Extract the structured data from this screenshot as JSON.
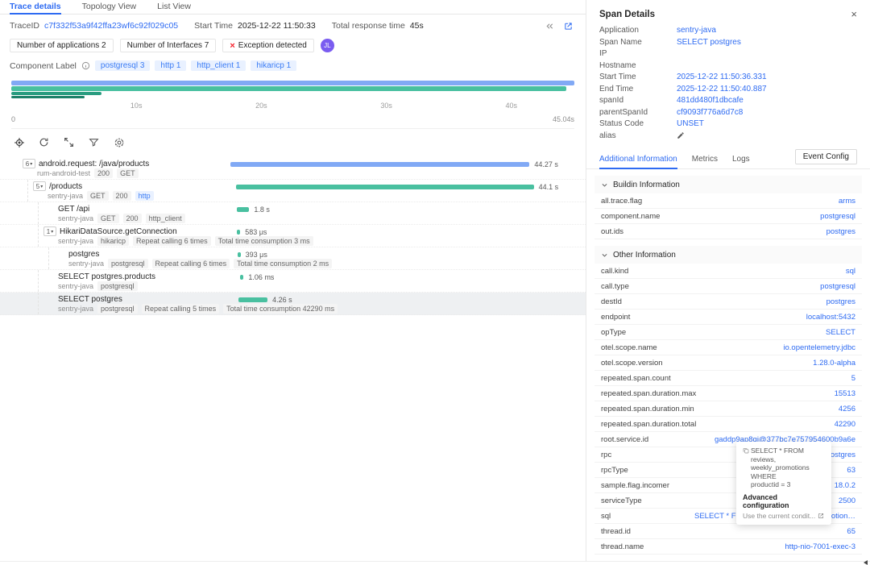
{
  "colors": {
    "accent": "#2e6bf2",
    "bar_blue": "#81a9f5",
    "bar_green": "#49c0a0",
    "bar_teal": "#2a9c80",
    "bar_dark_teal": "#1d8169",
    "exception_red": "#f5222d",
    "badge_purple": "#7a5cf0"
  },
  "tabs": {
    "items": [
      {
        "label": "Trace details",
        "active": true
      },
      {
        "label": "Topology View",
        "active": false
      },
      {
        "label": "List View",
        "active": false
      }
    ]
  },
  "trace_header": {
    "trace_id_label": "TraceID",
    "trace_id": "c7f332f53a9f42ffa23wf6c92f029c05",
    "start_time_label": "Start Time",
    "start_time": "2025-12-22 11:50:33",
    "total_label": "Total response time",
    "total_value": "45s"
  },
  "summary": {
    "applications": "Number of applications 2",
    "interfaces": "Number of Interfaces 7",
    "exception": "Exception detected",
    "badge": "JL"
  },
  "component_label": {
    "label": "Component Label",
    "chips": [
      {
        "text": "postgresql 3"
      },
      {
        "text": "http 1"
      },
      {
        "text": "http_client 1"
      },
      {
        "text": "hikaricp 1"
      }
    ]
  },
  "minimap": {
    "total_seconds": 45.04,
    "bars": [
      {
        "width_pct": 100,
        "height": 6,
        "color": "#81a9f5"
      },
      {
        "width_pct": 98.5,
        "height": 6,
        "color": "#49c0a0"
      },
      {
        "width_pct": 16,
        "height": 4,
        "color": "#2a9c80"
      },
      {
        "width_pct": 13,
        "height": 3,
        "color": "#1d8169"
      }
    ],
    "ticks": [
      "10s",
      "20s",
      "30s",
      "40s"
    ],
    "axis_start": "0",
    "axis_end": "45.04s"
  },
  "spans": [
    {
      "title": "android.request: /java/products",
      "expander": "6",
      "indent": 0,
      "badges": [
        {
          "t": "rum-android-test",
          "k": "plain"
        },
        {
          "t": "200",
          "k": "gray"
        },
        {
          "t": "GET",
          "k": "gray"
        }
      ],
      "bar": {
        "start_s": 0.1,
        "dur_s": 44.27,
        "color": "#81a9f5"
      },
      "duration": "44.27 s",
      "highlight": false
    },
    {
      "title": "/products",
      "expander": "5",
      "indent": 1,
      "badges": [
        {
          "t": "sentry-java",
          "k": "plain"
        },
        {
          "t": "GET",
          "k": "gray"
        },
        {
          "t": "200",
          "k": "gray"
        },
        {
          "t": "http",
          "k": "blue"
        }
      ],
      "bar": {
        "start_s": 0.9,
        "dur_s": 44.1,
        "color": "#49c0a0"
      },
      "duration": "44.1 s",
      "highlight": false
    },
    {
      "title": "GET /api",
      "expander": "",
      "indent": 2,
      "badges": [
        {
          "t": "sentry-java",
          "k": "plain"
        },
        {
          "t": "GET",
          "k": "gray"
        },
        {
          "t": "200",
          "k": "gray"
        },
        {
          "t": "http_client",
          "k": "gray"
        }
      ],
      "bar": {
        "start_s": 1.1,
        "dur_s": 1.8,
        "color": "#49c0a0"
      },
      "duration": "1.8 s",
      "highlight": false
    },
    {
      "title": "HikariDataSource.getConnection",
      "expander": "1",
      "indent": 2,
      "badges": [
        {
          "t": "sentry-java",
          "k": "plain"
        },
        {
          "t": "hikaricp",
          "k": "gray"
        },
        {
          "t": "Repeat calling 6 times",
          "k": "gray"
        },
        {
          "t": "Total time consumption 3 ms",
          "k": "gray"
        }
      ],
      "bar": {
        "start_s": 1.1,
        "dur_s": 0.000583,
        "color": "#49c0a0"
      },
      "duration": "583 μs",
      "highlight": false
    },
    {
      "title": "postgres",
      "expander": "",
      "indent": 3,
      "badges": [
        {
          "t": "sentry-java",
          "k": "plain"
        },
        {
          "t": "postgresql",
          "k": "gray"
        },
        {
          "t": "Repeat calling 6 times",
          "k": "gray"
        },
        {
          "t": "Total time consumption 2 ms",
          "k": "gray"
        }
      ],
      "bar": {
        "start_s": 1.15,
        "dur_s": 0.000393,
        "color": "#49c0a0"
      },
      "duration": "393 μs",
      "highlight": false
    },
    {
      "title": "SELECT postgres.products",
      "expander": "",
      "indent": 2,
      "badges": [
        {
          "t": "sentry-java",
          "k": "plain"
        },
        {
          "t": "postgresql",
          "k": "gray"
        }
      ],
      "bar": {
        "start_s": 1.6,
        "dur_s": 0.00106,
        "color": "#49c0a0"
      },
      "duration": "1.06 ms",
      "highlight": false
    },
    {
      "title": "SELECT postgres",
      "expander": "",
      "indent": 2,
      "badges": [
        {
          "t": "sentry-java",
          "k": "plain"
        },
        {
          "t": "postgresql",
          "k": "gray"
        },
        {
          "t": "Repeat calling 5 times",
          "k": "gray"
        },
        {
          "t": "Total time consumption 42290 ms",
          "k": "gray"
        }
      ],
      "bar": {
        "start_s": 1.35,
        "dur_s": 4.26,
        "color": "#49c0a0"
      },
      "duration": "4.26 s",
      "highlight": true
    }
  ],
  "span_details": {
    "title": "Span Details",
    "close": "×",
    "fields": [
      {
        "label": "Application",
        "value": "sentry-java",
        "edit_icon": false
      },
      {
        "label": "Span Name",
        "value": "SELECT postgres",
        "edit_icon": false
      },
      {
        "label": "IP",
        "value": "",
        "edit_icon": false
      },
      {
        "label": "Hostname",
        "value": "",
        "edit_icon": false
      },
      {
        "label": "Start Time",
        "value": "2025-12-22 11:50:36.331",
        "edit_icon": false
      },
      {
        "label": "End Time",
        "value": "2025-12-22 11:50:40.887",
        "edit_icon": false
      },
      {
        "label": "spanId",
        "value": "481dd480f1dbcafe",
        "edit_icon": false
      },
      {
        "label": "parentSpanId",
        "value": "cf9093f776a6d7c8",
        "edit_icon": false
      },
      {
        "label": "Status Code",
        "value": "UNSET",
        "edit_icon": false
      },
      {
        "label": "alias",
        "value": "",
        "edit_icon": true
      }
    ],
    "tabs": [
      {
        "label": "Additional Information",
        "active": true
      },
      {
        "label": "Metrics",
        "active": false
      },
      {
        "label": "Logs",
        "active": false
      }
    ],
    "event_config": "Event Config",
    "sections": [
      {
        "title": "Buildin Information",
        "rows": [
          {
            "label": "all.trace.flag",
            "value": "arms"
          },
          {
            "label": "component.name",
            "value": "postgresql"
          },
          {
            "label": "out.ids",
            "value": "postgres"
          }
        ]
      },
      {
        "title": "Other Information",
        "rows": [
          {
            "label": "call.kind",
            "value": "sql"
          },
          {
            "label": "call.type",
            "value": "postgresql"
          },
          {
            "label": "destId",
            "value": "postgres"
          },
          {
            "label": "endpoint",
            "value": "localhost:5432"
          },
          {
            "label": "opType",
            "value": "SELECT"
          },
          {
            "label": "otel.scope.name",
            "value": "io.opentelemetry.jdbc"
          },
          {
            "label": "otel.scope.version",
            "value": "1.28.0-alpha"
          },
          {
            "label": "repeated.span.count",
            "value": "5"
          },
          {
            "label": "repeated.span.duration.max",
            "value": "15513"
          },
          {
            "label": "repeated.span.duration.min",
            "value": "4256"
          },
          {
            "label": "repeated.span.duration.total",
            "value": "42290"
          },
          {
            "label": "root.service.id",
            "value": "gaddp9ap8qi@377bc7e757954600b9a6e"
          },
          {
            "label": "rpc",
            "value": "SELECT postgres"
          },
          {
            "label": "rpcType",
            "value": "63"
          },
          {
            "label": "sample.flag.incomer",
            "value": "18.0.2"
          },
          {
            "label": "serviceType",
            "value": "2500"
          },
          {
            "label": "sql",
            "value": "SELECT * FROM reviews, weekly_promotions W..."
          },
          {
            "label": "thread.id",
            "value": "65"
          },
          {
            "label": "thread.name",
            "value": "http-nio-7001-exec-3"
          }
        ]
      }
    ],
    "tooltip": {
      "line1": "SELECT * FROM reviews,",
      "line2": "weekly_promotions WHERE",
      "line3": "productid = 3",
      "title": "Advanced configuration",
      "action": "Use the current condit..."
    }
  }
}
